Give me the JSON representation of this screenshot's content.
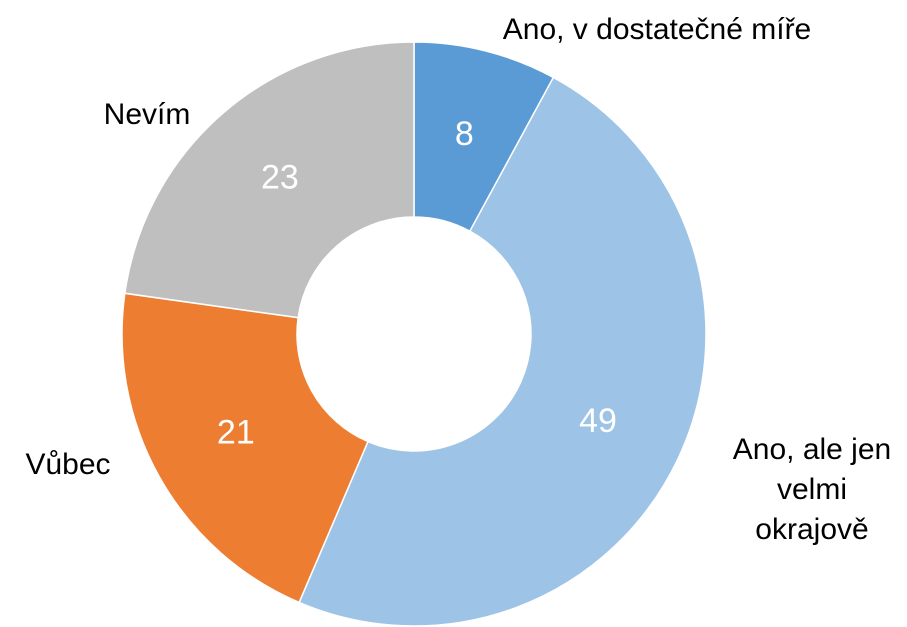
{
  "chart_data": {
    "type": "donut",
    "categories": [
      "Ano, v dostatečné míře",
      "Ano, ale jen velmi okrajově",
      "Vůbec",
      "Nevím"
    ],
    "values": [
      8,
      49,
      21,
      23
    ],
    "colors": [
      "#5b9bd5",
      "#9dc3e6",
      "#ed7d31",
      "#bfbfbf"
    ]
  }
}
